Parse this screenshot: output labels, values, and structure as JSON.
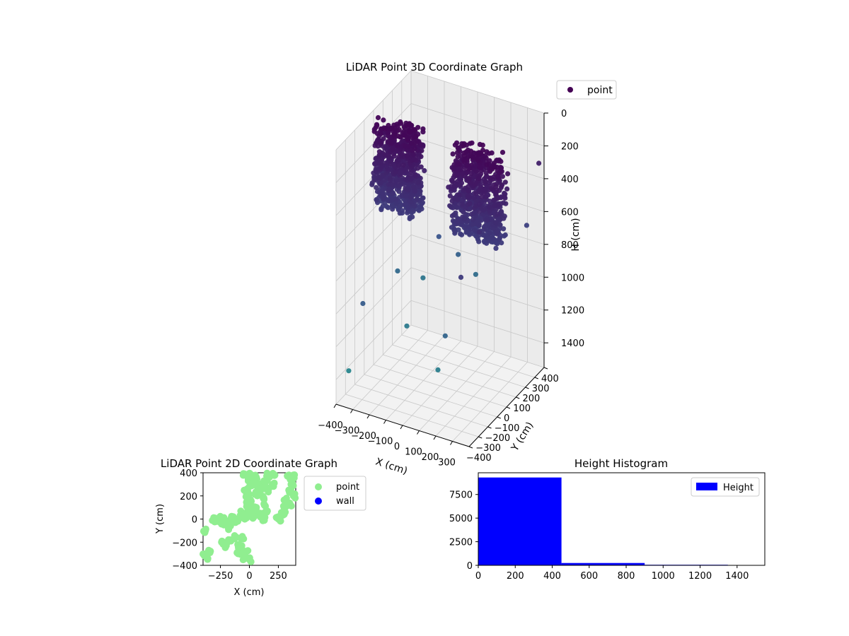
{
  "colors": {
    "viridis_dark": "#440154",
    "viridis_mid": "#3b528b",
    "viridis_teal": "#21918c",
    "point2d": "#90ee90",
    "wall2d": "#0000ff",
    "hist": "#0000ff",
    "pane": "#f2f2f2",
    "grid": "#c8c8c8"
  },
  "chart_data": [
    {
      "type": "scatter",
      "title": "LiDAR Point 3D Coordinate Graph",
      "xlabel": "X (cm)",
      "ylabel": "Y (cm)",
      "zlabel": "H (cm)",
      "xlim": [
        -400,
        400
      ],
      "ylim": [
        -400,
        400
      ],
      "zlim": [
        0,
        1550
      ],
      "z_inverted": true,
      "grid": true,
      "legend": "top-right",
      "x_ticks": [
        "−400",
        "−300",
        "−200",
        "−100",
        "0",
        "100",
        "200",
        "300"
      ],
      "y_ticks": [
        "−400",
        "−300",
        "−200",
        "−100",
        "0",
        "100",
        "200",
        "300",
        "400"
      ],
      "z_ticks": [
        "0",
        "200",
        "400",
        "600",
        "800",
        "1000",
        "1200",
        "1400"
      ],
      "series": [
        {
          "name": "point",
          "clusters": [
            {
              "x_range": [
                -380,
                -120
              ],
              "y_range": [
                -60,
                60
              ],
              "h_range": [
                40,
                560
              ]
            },
            {
              "x_range": [
                80,
                380
              ],
              "y_range": [
                -60,
                60
              ],
              "h_range": [
                40,
                560
              ]
            }
          ],
          "scattered": [
            [
              -300,
              350,
              1200
            ],
            [
              -250,
              -380,
              900
            ],
            [
              150,
              320,
              700
            ],
            [
              320,
              -150,
              420
            ],
            [
              -120,
              200,
              800
            ],
            [
              200,
              -300,
              1000
            ],
            [
              380,
              380,
              300
            ],
            [
              -380,
              -300,
              1400
            ],
            [
              0,
              380,
              1100
            ],
            [
              260,
              100,
              650
            ],
            [
              -200,
              0,
              1250
            ],
            [
              340,
              -380,
              550
            ],
            [
              100,
              -200,
              1300
            ],
            [
              -60,
              300,
              950
            ],
            [
              380,
              250,
              600
            ],
            [
              -340,
              150,
              1050
            ]
          ]
        }
      ]
    },
    {
      "type": "scatter",
      "title": "LiDAR Point 2D Coordinate Graph",
      "xlabel": "X (cm)",
      "ylabel": "Y (cm)",
      "xlim": [
        -400,
        400
      ],
      "ylim": [
        -400,
        400
      ],
      "x_ticks": [
        "−250",
        "0",
        "250"
      ],
      "y_ticks": [
        "400",
        "200",
        "0",
        "−200",
        "−400"
      ],
      "legend": "outside-right",
      "series": [
        {
          "name": "point",
          "points": [
            [
              -380,
              -300
            ],
            [
              -360,
              -340
            ],
            [
              -380,
              -100
            ],
            [
              -340,
              -280
            ],
            [
              -300,
              0
            ],
            [
              -280,
              -20
            ],
            [
              -260,
              10
            ],
            [
              -250,
              -30
            ],
            [
              -240,
              0
            ],
            [
              -220,
              -50
            ],
            [
              -200,
              -20
            ],
            [
              -180,
              -80
            ],
            [
              -160,
              -10
            ],
            [
              -140,
              20
            ],
            [
              -120,
              -30
            ],
            [
              -100,
              0
            ],
            [
              -80,
              30
            ],
            [
              -60,
              50
            ],
            [
              -40,
              10
            ],
            [
              -20,
              60
            ],
            [
              0,
              40
            ],
            [
              20,
              20
            ],
            [
              40,
              70
            ],
            [
              60,
              100
            ],
            [
              80,
              50
            ],
            [
              100,
              30
            ],
            [
              120,
              0
            ],
            [
              -120,
              -160
            ],
            [
              -160,
              -190
            ],
            [
              -100,
              -220
            ],
            [
              -80,
              -250
            ],
            [
              -60,
              -170
            ],
            [
              -200,
              -230
            ],
            [
              -240,
              -200
            ],
            [
              -30,
              -280
            ],
            [
              0,
              -350
            ],
            [
              -40,
              -340
            ],
            [
              -90,
              -300
            ],
            [
              30,
              80
            ],
            [
              -20,
              130
            ],
            [
              -10,
              200
            ],
            [
              0,
              280
            ],
            [
              -10,
              350
            ],
            [
              20,
              380
            ],
            [
              40,
              320
            ],
            [
              60,
              360
            ],
            [
              80,
              300
            ],
            [
              110,
              280
            ],
            [
              140,
              320
            ],
            [
              160,
              250
            ],
            [
              120,
              180
            ],
            [
              130,
              120
            ],
            [
              150,
              60
            ],
            [
              -30,
              250
            ],
            [
              -50,
              380
            ],
            [
              160,
              380
            ],
            [
              220,
              380
            ],
            [
              250,
              20
            ],
            [
              280,
              50
            ],
            [
              300,
              100
            ],
            [
              320,
              180
            ],
            [
              340,
              250
            ],
            [
              360,
              300
            ],
            [
              370,
              350
            ],
            [
              380,
              200
            ],
            [
              350,
              130
            ],
            [
              300,
              40
            ],
            [
              250,
              0
            ],
            [
              380,
              380
            ],
            [
              330,
              370
            ],
            [
              -5,
              100
            ],
            [
              10,
              160
            ],
            [
              50,
              220
            ],
            [
              90,
              240
            ],
            [
              200,
              300
            ]
          ]
        },
        {
          "name": "wall",
          "points": []
        }
      ]
    },
    {
      "type": "bar",
      "title": "Height Histogram",
      "xlim": [
        0,
        1550
      ],
      "ylim": [
        0,
        9800
      ],
      "x_ticks": [
        "0",
        "200",
        "400",
        "600",
        "800",
        "1000",
        "1200",
        "1400"
      ],
      "y_ticks": [
        "0",
        "2500",
        "5000",
        "7500"
      ],
      "legend": "top-right",
      "series": [
        {
          "name": "Height",
          "bins": [
            {
              "from": 0,
              "to": 450,
              "count": 9300
            },
            {
              "from": 450,
              "to": 900,
              "count": 250
            },
            {
              "from": 900,
              "to": 1350,
              "count": 60
            },
            {
              "from": 1350,
              "to": 1550,
              "count": 30
            }
          ]
        }
      ]
    }
  ]
}
